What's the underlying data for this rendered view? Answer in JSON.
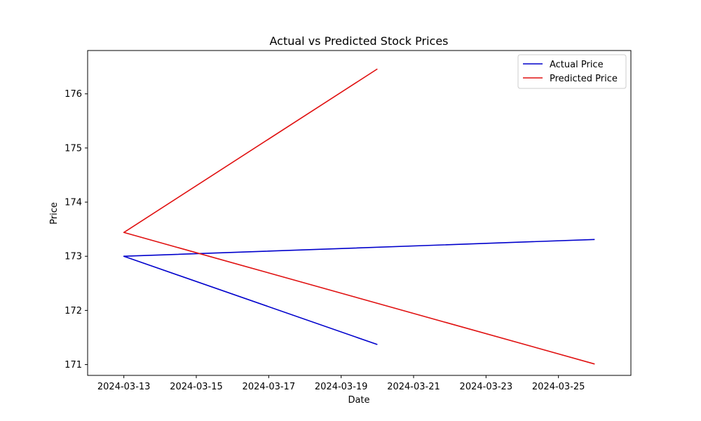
{
  "chart_data": {
    "type": "line",
    "title": "Actual vs Predicted Stock Prices",
    "xlabel": "Date",
    "ylabel": "Price",
    "x_is_date": true,
    "xlim": [
      "2024-03-12",
      "2024-03-27"
    ],
    "ylim": [
      170.8,
      176.8
    ],
    "x_ticks": [
      "2024-03-13",
      "2024-03-15",
      "2024-03-17",
      "2024-03-19",
      "2024-03-21",
      "2024-03-23",
      "2024-03-25"
    ],
    "y_ticks": [
      171,
      172,
      173,
      174,
      175,
      176
    ],
    "grid": false,
    "legend_position": "top-right",
    "series": [
      {
        "name": "Actual Price",
        "color": "#0000cc",
        "points": [
          {
            "x": "2024-03-20",
            "y": 171.37
          },
          {
            "x": "2024-03-13",
            "y": 173.0
          },
          {
            "x": "2024-03-26",
            "y": 173.31
          }
        ]
      },
      {
        "name": "Predicted Price",
        "color": "#e01010",
        "points": [
          {
            "x": "2024-03-20",
            "y": 176.46
          },
          {
            "x": "2024-03-13",
            "y": 173.44
          },
          {
            "x": "2024-03-26",
            "y": 171.01
          }
        ]
      }
    ]
  }
}
